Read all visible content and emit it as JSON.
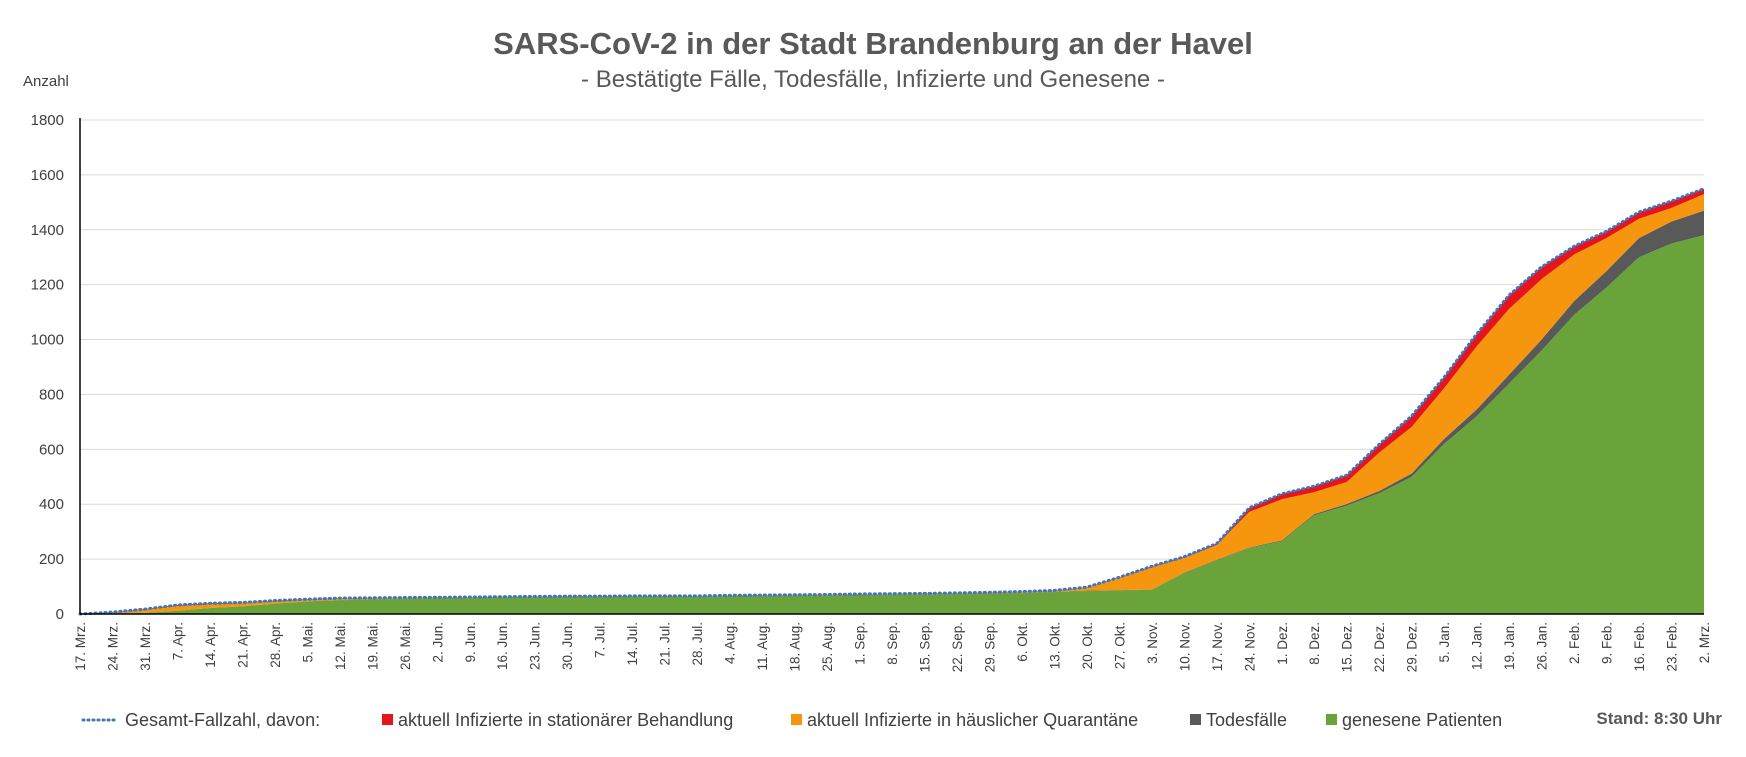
{
  "chart_data": {
    "type": "area",
    "title": "SARS-CoV-2 in der Stadt Brandenburg an der Havel",
    "subtitle": "- Bestätigte Fälle, Todesfälle, Infizierte und Genesene -",
    "ylabel": "Anzahl",
    "ylim": [
      0,
      1800
    ],
    "yticks": [
      0,
      200,
      400,
      600,
      800,
      1000,
      1200,
      1400,
      1600,
      1800
    ],
    "grid": true,
    "stand": "Stand: 8:30 Uhr",
    "categories": [
      "17. Mrz.",
      "24. Mrz.",
      "31. Mrz.",
      "7. Apr.",
      "14. Apr.",
      "21. Apr.",
      "28. Apr.",
      "5. Mai.",
      "12. Mai.",
      "19. Mai.",
      "26. Mai.",
      "2. Jun.",
      "9. Jun.",
      "16. Jun.",
      "23. Jun.",
      "30. Jun.",
      "7. Jul.",
      "14. Jul.",
      "21. Jul.",
      "28. Jul.",
      "4. Aug.",
      "11. Aug.",
      "18. Aug.",
      "25. Aug.",
      "1. Sep.",
      "8. Sep.",
      "15. Sep.",
      "22. Sep.",
      "29. Sep.",
      "6. Okt.",
      "13. Okt.",
      "20. Okt.",
      "27. Okt.",
      "3. Nov.",
      "10. Nov.",
      "17. Nov.",
      "24. Nov.",
      "1. Dez.",
      "8. Dez.",
      "15. Dez.",
      "22. Dez.",
      "29. Dez.",
      "5. Jan.",
      "12. Jan.",
      "19. Jan.",
      "26. Jan.",
      "2. Feb.",
      "9. Feb.",
      "16. Feb.",
      "23. Feb.",
      "2. Mrz."
    ],
    "series": [
      {
        "name": "genesene Patienten",
        "color": "#6aa33a",
        "values": [
          0,
          1,
          4,
          12,
          22,
          28,
          38,
          45,
          50,
          53,
          55,
          57,
          58,
          60,
          61,
          62,
          62,
          63,
          63,
          63,
          64,
          65,
          66,
          67,
          68,
          69,
          70,
          72,
          74,
          76,
          80,
          84,
          86,
          88,
          150,
          195,
          240,
          265,
          360,
          395,
          440,
          500,
          620,
          720,
          840,
          960,
          1090,
          1190,
          1300,
          1350,
          1380
        ]
      },
      {
        "name": "Todesfälle",
        "color": "#595959",
        "values": [
          0,
          0,
          0,
          0,
          0,
          0,
          0,
          1,
          1,
          1,
          1,
          1,
          1,
          1,
          1,
          1,
          1,
          1,
          1,
          1,
          1,
          1,
          1,
          1,
          1,
          1,
          1,
          1,
          1,
          1,
          1,
          1,
          1,
          1,
          1,
          2,
          2,
          3,
          4,
          6,
          8,
          12,
          18,
          25,
          32,
          40,
          50,
          60,
          70,
          80,
          90
        ]
      },
      {
        "name": "aktuell Infizierte in häuslicher Quarantäne",
        "color": "#f6960f",
        "values": [
          0,
          5,
          12,
          18,
          14,
          12,
          9,
          7,
          6,
          4,
          3,
          2,
          2,
          1,
          1,
          1,
          1,
          1,
          1,
          1,
          2,
          2,
          2,
          2,
          3,
          3,
          3,
          3,
          3,
          4,
          4,
          12,
          45,
          82,
          55,
          55,
          130,
          150,
          80,
          80,
          140,
          170,
          185,
          230,
          240,
          220,
          170,
          120,
          70,
          50,
          60
        ]
      },
      {
        "name": "aktuell Infizierte in stationärer Behandlung",
        "color": "#e8141b",
        "values": [
          0,
          1,
          2,
          3,
          3,
          2,
          2,
          1,
          1,
          1,
          1,
          1,
          1,
          1,
          1,
          1,
          1,
          1,
          1,
          1,
          1,
          1,
          1,
          1,
          1,
          1,
          1,
          1,
          1,
          1,
          1,
          1,
          2,
          3,
          3,
          5,
          15,
          20,
          22,
          25,
          30,
          40,
          40,
          45,
          50,
          45,
          30,
          25,
          25,
          25,
          20
        ]
      }
    ],
    "total": {
      "name": "Gesamt-Fallzahl, davon:",
      "color": "#3b76c0",
      "values": [
        0,
        7,
        18,
        33,
        39,
        42,
        49,
        54,
        58,
        59,
        60,
        61,
        62,
        63,
        64,
        65,
        65,
        66,
        66,
        66,
        68,
        69,
        70,
        71,
        73,
        74,
        75,
        77,
        79,
        82,
        86,
        98,
        134,
        174,
        209,
        257,
        387,
        438,
        466,
        506,
        618,
        722,
        863,
        1020,
        1162,
        1265,
        1340,
        1395,
        1465,
        1505,
        1550
      ]
    }
  }
}
